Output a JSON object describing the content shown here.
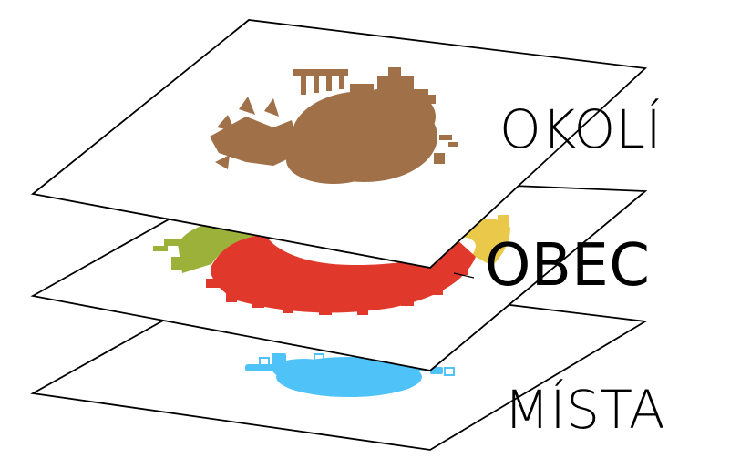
{
  "layers": [
    {
      "id": "okoli",
      "label": "OKOLÍ",
      "color": "#a07048"
    },
    {
      "id": "obec",
      "label": "OBEC",
      "color": "#e0392b"
    },
    {
      "id": "mista",
      "label": "MÍSTA",
      "color": "#4fc3f7"
    }
  ],
  "colors": {
    "okoli_brown": "#a07048",
    "obec_red": "#e0392b",
    "obec_green": "#9bb13a",
    "obec_yellow": "#e9c84a",
    "mista_blue": "#4fc3f7",
    "outline": "#000000"
  }
}
